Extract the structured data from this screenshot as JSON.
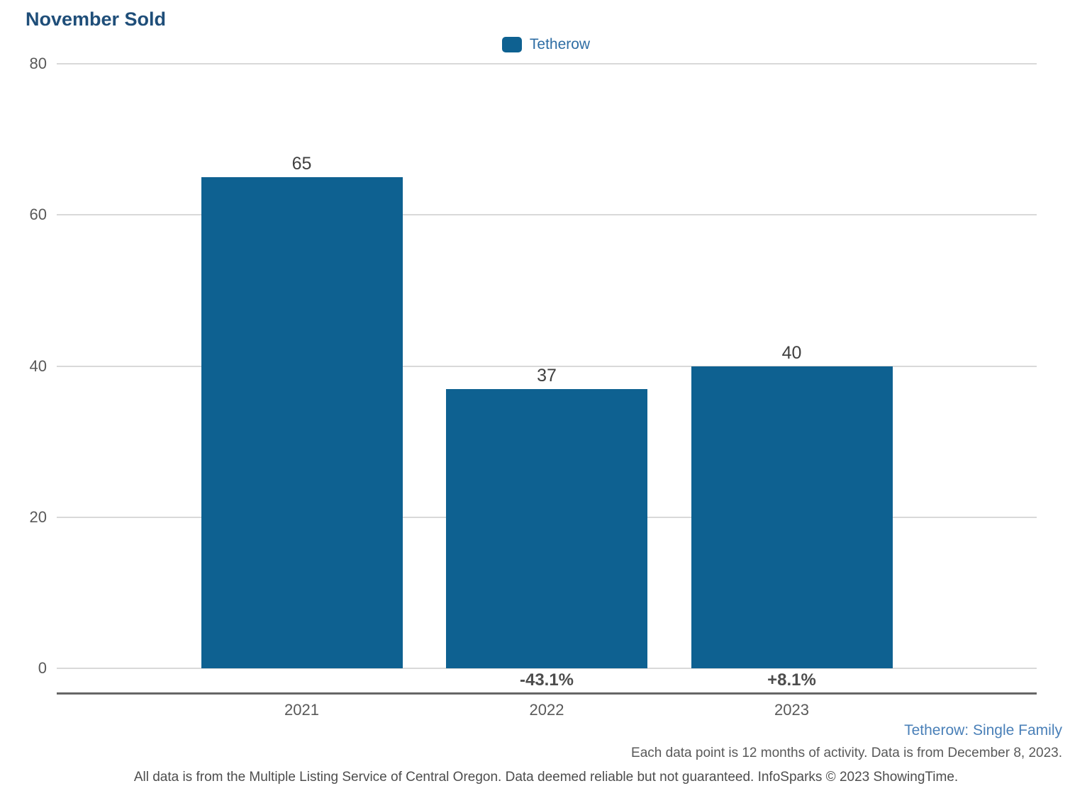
{
  "title": "November Sold",
  "legend": {
    "label": "Tetherow",
    "swatch_color": "#0e6191"
  },
  "chart_data": {
    "type": "bar",
    "title": "November Sold",
    "series_name": "Tetherow",
    "categories": [
      "2021",
      "2022",
      "2023"
    ],
    "values": [
      65,
      37,
      40
    ],
    "value_labels": [
      "65",
      "37",
      "40"
    ],
    "pct_change_labels": [
      "",
      "-43.1%",
      "+8.1%"
    ],
    "ylim": [
      0,
      80
    ],
    "yticks": [
      0,
      20,
      40,
      60,
      80
    ],
    "grid": "horizontal",
    "legend_position": "top-center",
    "bar_color": "#0e6191"
  },
  "footer": {
    "series_note": "Tetherow: Single Family",
    "data_note": "Each data point is 12 months of activity. Data is from December 8, 2023.",
    "source_note": "All data is from the Multiple Listing Service of Central Oregon. Data deemed reliable but not guaranteed. InfoSparks © 2023 ShowingTime."
  },
  "colors": {
    "title": "#1f4e79",
    "bar": "#0e6191",
    "legend_label": "#2e6da4",
    "axis_text": "#595959",
    "value_label": "#404040",
    "pct_label": "#4d4d4d",
    "gridline": "#d9d9d9",
    "baseline": "#666666",
    "series_note": "#4a80b8"
  }
}
